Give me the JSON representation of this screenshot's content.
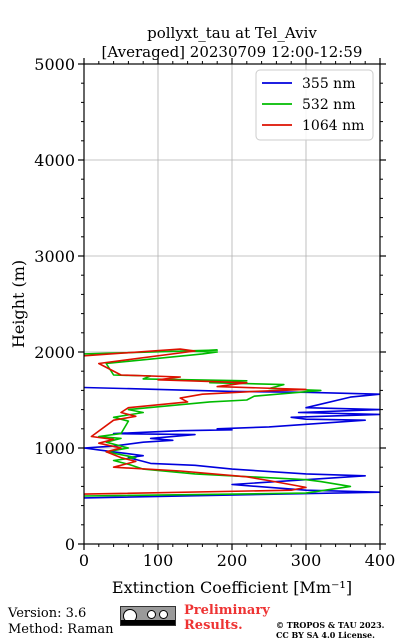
{
  "chart_data": {
    "type": "line",
    "title_line1": "pollyxt_tau at Tel_Aviv",
    "title_line2": "[Averaged] 20230709 12:00-12:59",
    "xlabel": "Extinction Coefficient [Mm⁻¹]",
    "ylabel": "Height (m)",
    "xlim": [
      0,
      400
    ],
    "ylim": [
      0,
      5000
    ],
    "xticks": [
      "0",
      "100",
      "200",
      "300",
      "400"
    ],
    "yticks": [
      "0",
      "1000",
      "2000",
      "3000",
      "4000",
      "5000"
    ],
    "grid": true,
    "legend_position": "top-right",
    "series": [
      {
        "name": "355 nm",
        "color": "#0000dd",
        "points": [
          [
            0,
            480
          ],
          [
            400,
            540
          ],
          [
            300,
            560
          ],
          [
            200,
            620
          ],
          [
            380,
            710
          ],
          [
            300,
            730
          ],
          [
            200,
            780
          ],
          [
            150,
            820
          ],
          [
            90,
            840
          ],
          [
            80,
            860
          ],
          [
            60,
            900
          ],
          [
            80,
            920
          ],
          [
            50,
            950
          ],
          [
            20,
            980
          ],
          [
            0,
            1000
          ],
          [
            40,
            1020
          ],
          [
            80,
            1060
          ],
          [
            120,
            1080
          ],
          [
            90,
            1100
          ],
          [
            150,
            1140
          ],
          [
            40,
            1150
          ],
          [
            130,
            1180
          ],
          [
            200,
            1190
          ],
          [
            180,
            1200
          ],
          [
            250,
            1220
          ],
          [
            380,
            1290
          ],
          [
            300,
            1300
          ],
          [
            280,
            1320
          ],
          [
            400,
            1350
          ],
          [
            290,
            1370
          ],
          [
            400,
            1400
          ],
          [
            300,
            1420
          ],
          [
            360,
            1530
          ],
          [
            400,
            1560
          ],
          [
            300,
            1580
          ],
          [
            200,
            1590
          ],
          [
            100,
            1610
          ],
          [
            0,
            1630
          ]
        ]
      },
      {
        "name": "532 nm",
        "color": "#00bb00",
        "points": [
          [
            0,
            500
          ],
          [
            300,
            530
          ],
          [
            360,
            600
          ],
          [
            320,
            650
          ],
          [
            300,
            670
          ],
          [
            150,
            730
          ],
          [
            80,
            780
          ],
          [
            60,
            830
          ],
          [
            40,
            870
          ],
          [
            70,
            900
          ],
          [
            30,
            960
          ],
          [
            60,
            1000
          ],
          [
            30,
            1060
          ],
          [
            50,
            1100
          ],
          [
            20,
            1120
          ],
          [
            50,
            1150
          ],
          [
            60,
            1280
          ],
          [
            40,
            1320
          ],
          [
            80,
            1370
          ],
          [
            60,
            1400
          ],
          [
            170,
            1480
          ],
          [
            220,
            1500
          ],
          [
            230,
            1540
          ],
          [
            320,
            1600
          ],
          [
            250,
            1620
          ],
          [
            270,
            1660
          ],
          [
            170,
            1680
          ],
          [
            220,
            1700
          ],
          [
            80,
            1720
          ],
          [
            90,
            1750
          ],
          [
            40,
            1760
          ],
          [
            30,
            1880
          ],
          [
            160,
            1980
          ],
          [
            180,
            2000
          ],
          [
            130,
            2010
          ],
          [
            180,
            2020
          ],
          [
            0,
            1980
          ]
        ]
      },
      {
        "name": "1064 nm",
        "color": "#dd1100",
        "points": [
          [
            0,
            520
          ],
          [
            280,
            560
          ],
          [
            300,
            590
          ],
          [
            250,
            660
          ],
          [
            220,
            700
          ],
          [
            130,
            760
          ],
          [
            40,
            800
          ],
          [
            70,
            860
          ],
          [
            50,
            900
          ],
          [
            30,
            960
          ],
          [
            50,
            1000
          ],
          [
            20,
            1050
          ],
          [
            40,
            1090
          ],
          [
            10,
            1120
          ],
          [
            40,
            1290
          ],
          [
            70,
            1330
          ],
          [
            50,
            1370
          ],
          [
            60,
            1420
          ],
          [
            140,
            1480
          ],
          [
            130,
            1520
          ],
          [
            160,
            1560
          ],
          [
            230,
            1590
          ],
          [
            300,
            1610
          ],
          [
            180,
            1640
          ],
          [
            220,
            1680
          ],
          [
            100,
            1710
          ],
          [
            130,
            1740
          ],
          [
            50,
            1760
          ],
          [
            20,
            1880
          ],
          [
            150,
            2010
          ],
          [
            130,
            2030
          ],
          [
            0,
            1960
          ]
        ]
      }
    ]
  },
  "footer": {
    "version": "Version: 3.6",
    "method": "Method: Raman",
    "preliminary_line1": "Preliminary",
    "preliminary_line2": "Results.",
    "preliminary_color": "#ee3333",
    "copyright_line1": "© TROPOS & TAU 2023.",
    "copyright_line2": "CC BY SA 4.0 License.",
    "license_badge_icon": "cc-by-sa-icon"
  }
}
